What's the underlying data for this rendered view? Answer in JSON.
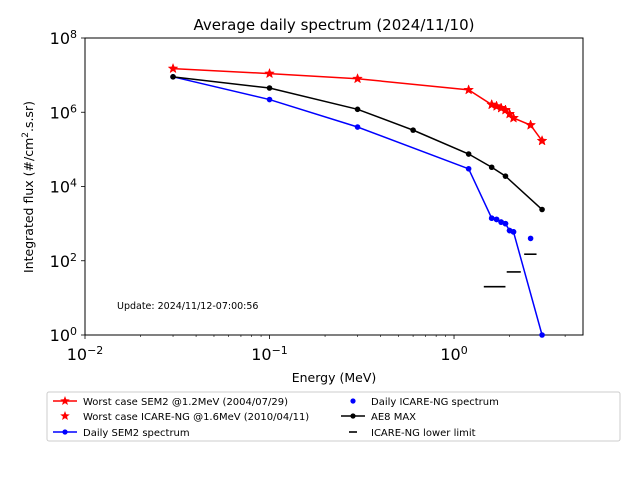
{
  "chart_data": {
    "type": "line",
    "title": "Average daily spectrum (2024/11/10)",
    "xlabel": "Energy (MeV)",
    "ylabel_parts": [
      "Integrated flux (#/cm",
      "2",
      ".s.sr)"
    ],
    "x_scale": "log",
    "y_scale": "log",
    "xlim": [
      0.01,
      5
    ],
    "ylim": [
      1,
      100000000
    ],
    "x_ticks": [
      {
        "value": 0.01,
        "base": "10",
        "exp": "−2"
      },
      {
        "value": 0.1,
        "base": "10",
        "exp": "−1"
      },
      {
        "value": 1,
        "base": "10",
        "exp": "0"
      }
    ],
    "y_ticks": [
      {
        "value": 1,
        "base": "10",
        "exp": "0"
      },
      {
        "value": 100,
        "base": "10",
        "exp": "2"
      },
      {
        "value": 10000,
        "base": "10",
        "exp": "4"
      },
      {
        "value": 1000000,
        "base": "10",
        "exp": "6"
      },
      {
        "value": 100000000,
        "base": "10",
        "exp": "8"
      }
    ],
    "annotation": "Update: 2024/11/12-07:00:56",
    "grid": false,
    "legend_position": "bottom",
    "series": [
      {
        "name": "Worst case SEM2 @1.2MeV (2004/07/29)",
        "color": "#ff0000",
        "marker": "star",
        "line": true,
        "x": [
          0.03,
          0.1,
          0.3,
          1.2,
          1.6,
          1.7,
          1.8,
          1.9,
          2.0,
          2.1,
          2.6,
          3.0
        ],
        "y": [
          15000000,
          11000000,
          8000000,
          4000000,
          1600000,
          1450000,
          1300000,
          1150000,
          900000,
          700000,
          450000,
          170000
        ]
      },
      {
        "name": "Daily SEM2 spectrum",
        "color": "#0000ff",
        "marker": "dot",
        "line": true,
        "x": [
          0.03,
          0.1,
          0.3,
          1.2,
          1.6,
          1.7,
          1.8,
          1.9,
          2.0,
          2.1,
          3.0
        ],
        "y": [
          9000000,
          2200000,
          400000,
          30000,
          1400,
          1300,
          1100,
          1000,
          650,
          600,
          1
        ]
      },
      {
        "name": "AE8 MAX",
        "color": "#000000",
        "marker": "dot",
        "line": true,
        "x": [
          0.03,
          0.1,
          0.3,
          0.6,
          1.2,
          1.6,
          1.9,
          3.0
        ],
        "y": [
          9000000,
          4500000,
          1200000,
          330000,
          75000,
          33000,
          19000,
          2400
        ]
      },
      {
        "name": "Worst case ICARE-NG @1.6MeV (2010/04/11)",
        "color": "#ff0000",
        "marker": "star",
        "line": false,
        "x": [
          1.6,
          1.7,
          1.8,
          1.9,
          2.0,
          2.1,
          2.6,
          3.0
        ],
        "y": [
          1600000,
          1450000,
          1300000,
          1150000,
          900000,
          700000,
          450000,
          170000
        ]
      },
      {
        "name": "Daily ICARE-NG spectrum",
        "color": "#0000ff",
        "marker": "dot",
        "line": false,
        "x": [
          1.6,
          1.7,
          1.8,
          1.9,
          2.0,
          2.1,
          2.6
        ],
        "y": [
          1400,
          1300,
          1100,
          1000,
          650,
          600,
          400
        ]
      },
      {
        "name": "ICARE-NG lower limit",
        "color": "#000000",
        "marker": "dash",
        "line": false,
        "segments": [
          {
            "x0": 1.45,
            "x1": 1.9,
            "y": 20
          },
          {
            "x0": 1.93,
            "x1": 2.3,
            "y": 50
          },
          {
            "x0": 2.4,
            "x1": 2.8,
            "y": 150
          }
        ]
      }
    ],
    "legend_order": [
      0,
      3,
      1,
      4,
      2,
      5
    ]
  }
}
